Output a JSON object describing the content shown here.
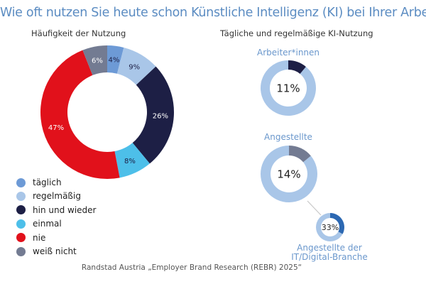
{
  "title": "Wie oft nutzen Sie heute schon Künstliche Intelligenz (KI) bei Ihrer Arbeit?",
  "source": "Randstad Austria „Employer Brand Research (REBR) 2025“",
  "chart_data": [
    {
      "type": "pie",
      "variant": "donut",
      "title": "Häufigkeit der Nutzung",
      "categories": [
        "täglich",
        "regelmäßig",
        "hin und wieder",
        "einmal",
        "nie",
        "weiß nicht"
      ],
      "values": [
        4,
        9,
        26,
        8,
        47,
        6
      ],
      "labels": [
        "4%",
        "9%",
        "26%",
        "8%",
        "47%",
        "6%"
      ],
      "colors": [
        "#6d9ad6",
        "#a9c6e8",
        "#1d1f45",
        "#4dbfe9",
        "#e1111b",
        "#737b92"
      ],
      "label_colors": [
        "#1d1f45",
        "#1d1f45",
        "#ffffff",
        "#1d1f45",
        "#ffffff",
        "#ffffff"
      ],
      "legend": "bottom-left"
    },
    {
      "type": "pie",
      "variant": "donut",
      "title": "Tägliche und regelmäßige KI-Nutzung",
      "rings": [
        {
          "name": "Arbeiter*innen",
          "value": 11,
          "label": "11%",
          "color": "#1d1f45",
          "rest_color": "#a9c6e8"
        },
        {
          "name": "Angestellte",
          "value": 14,
          "label": "14%",
          "color": "#737b92",
          "rest_color": "#a9c6e8"
        },
        {
          "name": "Angestellte der IT/Digital-Branche",
          "name_lines": [
            "Angestellte der",
            "IT/Digital-Branche"
          ],
          "value": 33,
          "label": "33%",
          "color": "#2c68b2",
          "rest_color": "#a9c6e8"
        }
      ]
    }
  ]
}
